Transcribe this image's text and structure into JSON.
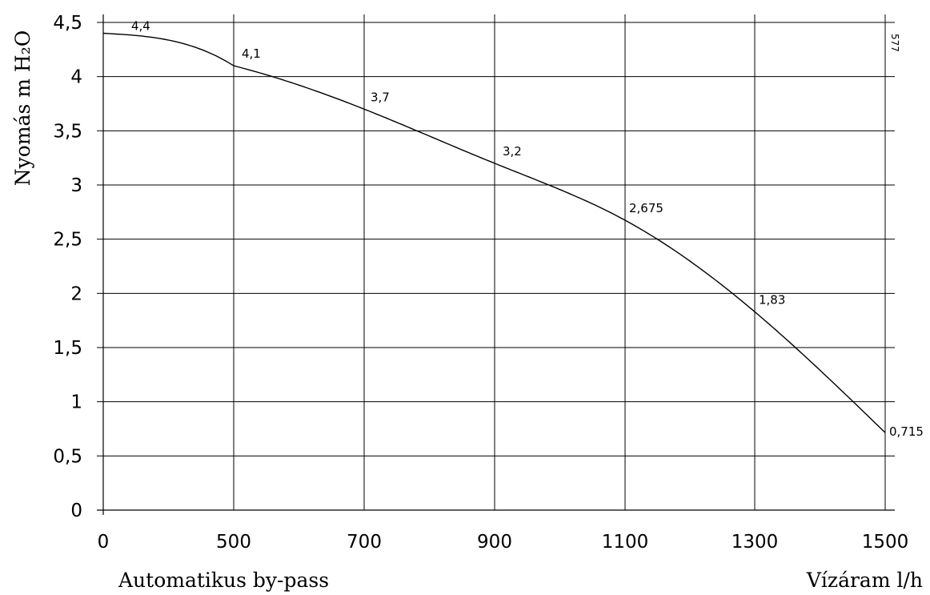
{
  "chart_data": {
    "type": "line",
    "title": "",
    "xlabel": "Vízáram l/h",
    "ylabel": "Nyomás m H₂O",
    "caption": "Automatikus by-pass",
    "figure_code": "577",
    "x_ticks": [
      "0",
      "500",
      "700",
      "900",
      "1100",
      "1300",
      "1500"
    ],
    "y_ticks": [
      "0",
      "0,5",
      "1",
      "1,5",
      "2",
      "2,5",
      "3",
      "3,5",
      "4",
      "4,5"
    ],
    "y_tick_values": [
      0,
      0.5,
      1,
      1.5,
      2,
      2.5,
      3,
      3.5,
      4,
      4.5
    ],
    "ylim": [
      0,
      4.5
    ],
    "grid": true,
    "series": [
      {
        "x": [
          0,
          500,
          700,
          900,
          1100,
          1300,
          1500
        ],
        "y": [
          4.4,
          4.1,
          3.7,
          3.2,
          2.675,
          1.83,
          0.715
        ],
        "labels": [
          "4,4",
          "4,1",
          "3,7",
          "3,2",
          "2,675",
          "1,83",
          "0,715"
        ]
      }
    ]
  }
}
